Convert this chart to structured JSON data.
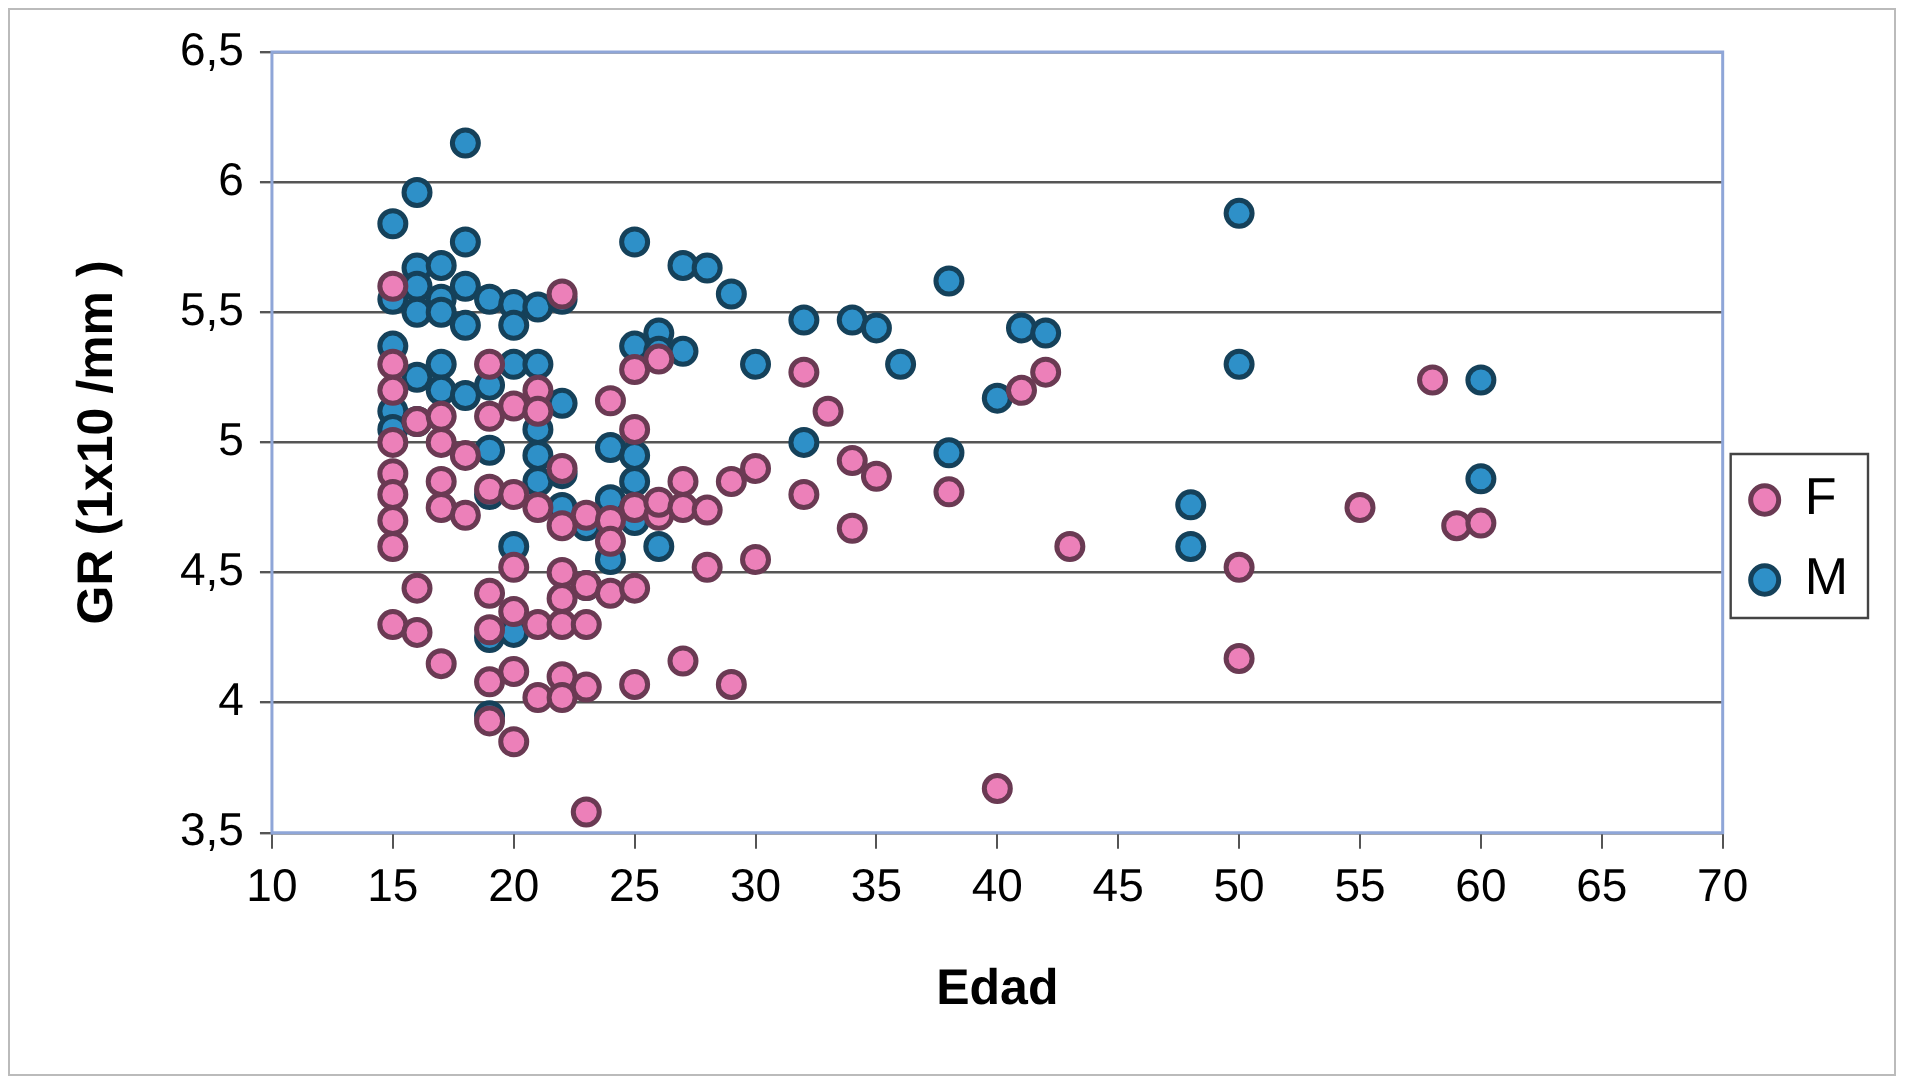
{
  "chart_data": {
    "type": "scatter",
    "xlabel": "Edad",
    "ylabel": "GR (1x10 /mm )",
    "xlim": [
      10,
      70
    ],
    "xticks": [
      10,
      15,
      20,
      25,
      30,
      35,
      40,
      45,
      50,
      55,
      60,
      65,
      70
    ],
    "ylim": [
      3.5,
      6.5
    ],
    "yticks": [
      {
        "value": 3.5,
        "label": "3,5"
      },
      4,
      {
        "value": 4.5,
        "label": "4,5"
      },
      5,
      {
        "value": 5.5,
        "label": "5,5"
      },
      6,
      {
        "value": 6.5,
        "label": "6,5"
      }
    ],
    "grid": "y",
    "legend": "right",
    "marker": "circle",
    "series": [
      {
        "name": "F",
        "color": "#ec80b9",
        "x": [
          15,
          15,
          15,
          15,
          15,
          15,
          15,
          15,
          15,
          16,
          16,
          16,
          17,
          17,
          17,
          17,
          17,
          18,
          18,
          19,
          19,
          19,
          19,
          19,
          19,
          19,
          20,
          20,
          20,
          20,
          20,
          20,
          21,
          21,
          21,
          21,
          21,
          22,
          22,
          22,
          22,
          22,
          22,
          22,
          22,
          23,
          23,
          23,
          23,
          23,
          24,
          24,
          24,
          24,
          25,
          25,
          25,
          25,
          25,
          26,
          26,
          26,
          27,
          27,
          27,
          28,
          28,
          29,
          29,
          30,
          30,
          32,
          32,
          33,
          34,
          34,
          35,
          38,
          40,
          41,
          42,
          43,
          50,
          50,
          55,
          58,
          59,
          60
        ],
        "values": [
          5.6,
          5.3,
          5.2,
          5.0,
          4.88,
          4.8,
          4.7,
          4.6,
          4.3,
          5.08,
          4.44,
          4.27,
          5.1,
          5.0,
          4.85,
          4.75,
          4.15,
          4.95,
          4.72,
          5.3,
          5.1,
          4.82,
          4.42,
          4.28,
          4.08,
          3.93,
          5.14,
          4.8,
          4.52,
          4.35,
          4.12,
          3.85,
          5.2,
          5.12,
          4.75,
          4.3,
          4.02,
          5.57,
          4.9,
          4.68,
          4.5,
          4.4,
          4.3,
          4.1,
          4.02,
          4.72,
          4.45,
          4.3,
          4.06,
          3.58,
          5.16,
          4.7,
          4.42,
          4.62,
          5.28,
          5.05,
          4.75,
          4.44,
          4.07,
          4.72,
          4.77,
          5.32,
          4.85,
          4.75,
          4.16,
          4.74,
          4.52,
          4.85,
          4.07,
          4.9,
          4.55,
          5.27,
          4.8,
          5.12,
          4.93,
          4.67,
          4.87,
          4.81,
          3.67,
          5.2,
          5.27,
          4.6,
          4.52,
          4.17,
          4.75,
          5.24,
          4.68,
          4.69
        ]
      },
      {
        "name": "M",
        "color": "#2e90c8",
        "x": [
          15,
          15,
          15,
          15,
          15,
          16,
          16,
          16,
          16,
          16,
          16,
          17,
          17,
          17,
          17,
          17,
          18,
          18,
          18,
          18,
          18,
          19,
          19,
          19,
          19,
          19,
          19,
          20,
          20,
          20,
          20,
          20,
          21,
          21,
          21,
          21,
          21,
          22,
          22,
          22,
          22,
          23,
          23,
          24,
          24,
          24,
          25,
          25,
          25,
          25,
          25,
          26,
          26,
          26,
          27,
          27,
          28,
          29,
          30,
          32,
          32,
          34,
          35,
          36,
          38,
          38,
          40,
          41,
          42,
          48,
          48,
          50,
          50,
          60,
          60
        ],
        "values": [
          5.84,
          5.55,
          5.37,
          5.12,
          5.05,
          5.96,
          5.67,
          5.6,
          5.5,
          5.25,
          5.08,
          5.68,
          5.55,
          5.5,
          5.3,
          5.2,
          6.15,
          5.77,
          5.6,
          5.45,
          5.18,
          5.55,
          5.22,
          4.97,
          4.8,
          4.25,
          3.95,
          5.53,
          5.45,
          5.3,
          4.6,
          4.27,
          5.52,
          5.3,
          5.05,
          4.95,
          4.85,
          5.55,
          5.15,
          4.88,
          4.75,
          4.68,
          4.45,
          4.98,
          4.78,
          4.55,
          5.77,
          5.37,
          4.95,
          4.85,
          4.7,
          5.42,
          5.35,
          4.6,
          5.68,
          5.35,
          5.67,
          5.57,
          5.3,
          5.47,
          5.0,
          5.47,
          5.44,
          5.3,
          5.62,
          4.96,
          5.17,
          5.44,
          5.42,
          4.76,
          4.6,
          5.88,
          5.3,
          5.24,
          4.86
        ]
      }
    ]
  }
}
